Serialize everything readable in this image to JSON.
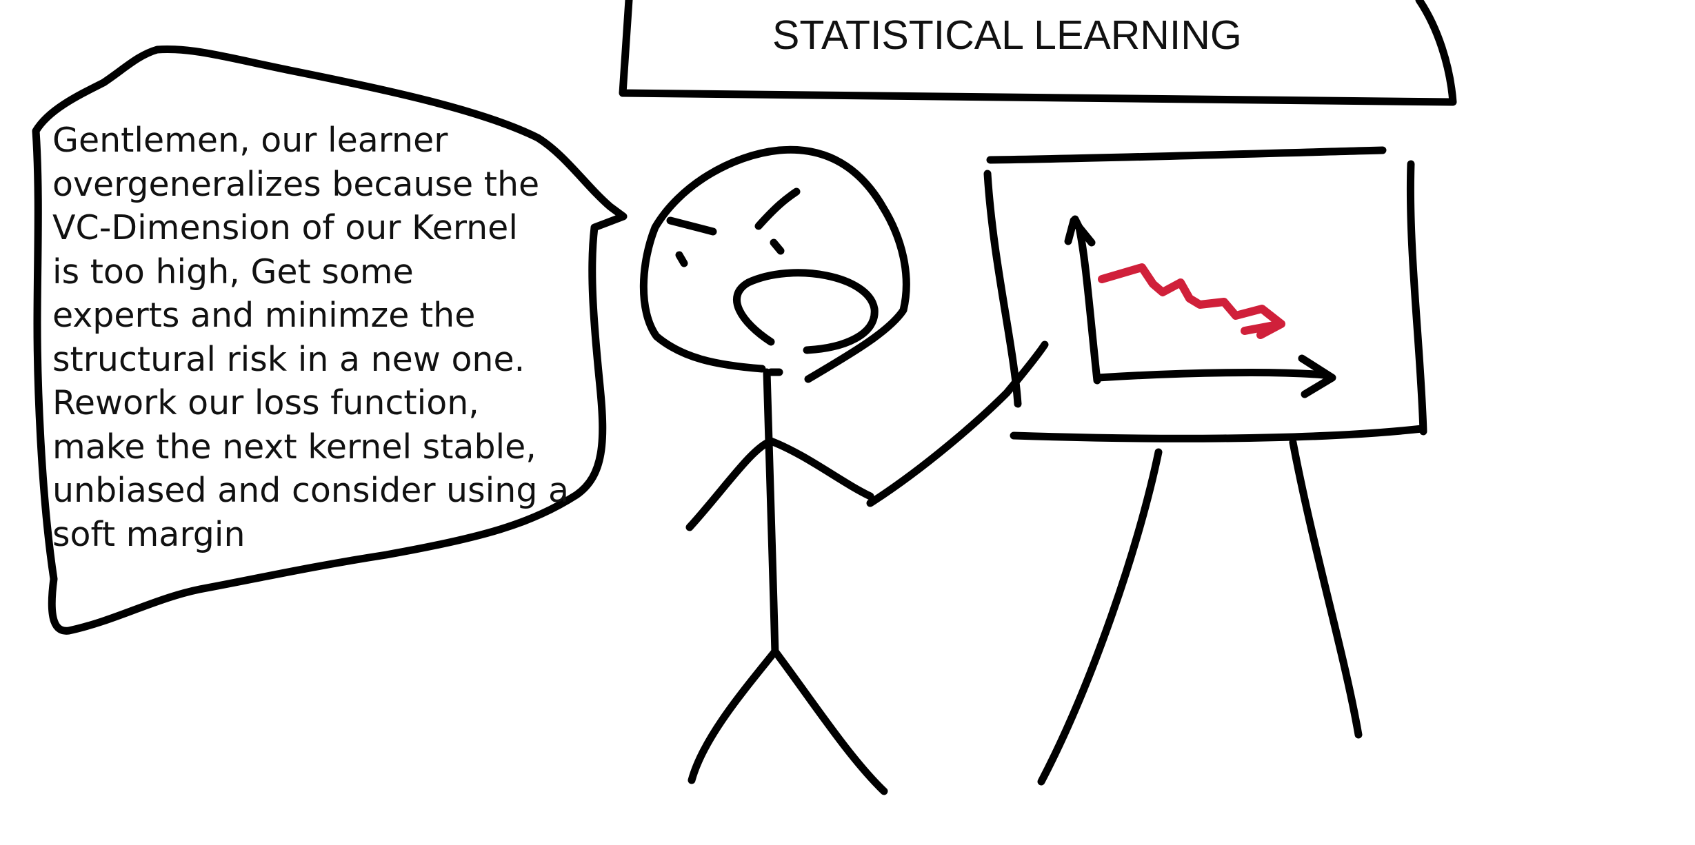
{
  "title": "STATISTICAL LEARNING",
  "speech_lines": [
    "Gentlemen, our learner",
    "overgeneralizes because the",
    "VC-Dimension of our Kernel",
    "is too high, Get some",
    "experts and minimze the",
    "structural risk in a new one.",
    "Rework our loss function,",
    "make the next kernel stable,",
    "unbiased and consider using a",
    "soft margin"
  ],
  "colors": {
    "ink": "#000000",
    "trend": "#d0203a",
    "background": "#ffffff"
  },
  "icons": {
    "presenter": "stick-figure-icon",
    "chart_trend": "downward-zigzag-arrow-icon"
  }
}
